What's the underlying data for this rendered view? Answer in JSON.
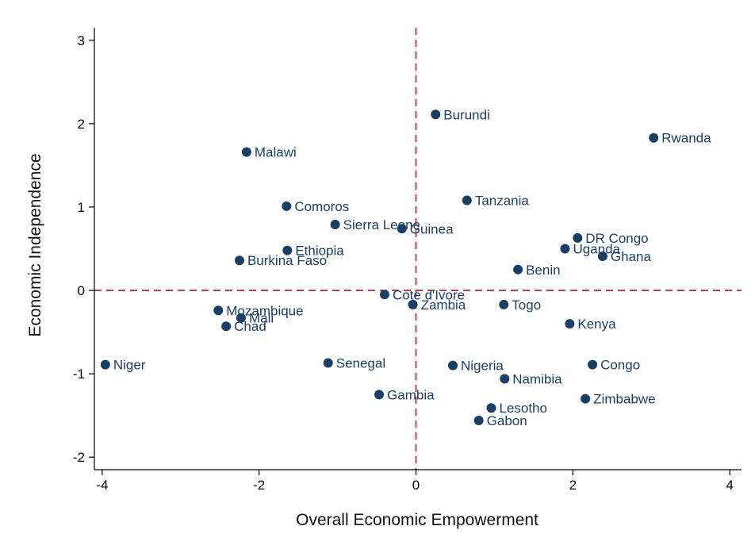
{
  "chart_data": {
    "type": "scatter",
    "title": "",
    "xlabel": "Overall Economic Empowerment",
    "ylabel": "Economic Independence",
    "xlim": [
      -4.1,
      4.15
    ],
    "ylim": [
      -2.15,
      3.15
    ],
    "xticks": [
      -4,
      -2,
      0,
      2,
      4
    ],
    "yticks": [
      -2,
      -1,
      0,
      1,
      2,
      3
    ],
    "xtick_labels": [
      "-4",
      "-2",
      "0",
      "2",
      "4"
    ],
    "ytick_labels": [
      "-2",
      "-1",
      "0",
      "1",
      "2",
      "3"
    ],
    "grid": false,
    "reference_lines": {
      "x": 0,
      "y": 0
    },
    "colors": {
      "point": "#1a3f66",
      "reference": "#b0153a"
    },
    "points": [
      {
        "label": "Burundi",
        "x": 0.25,
        "y": 2.11
      },
      {
        "label": "Rwanda",
        "x": 3.03,
        "y": 1.83
      },
      {
        "label": "Malawi",
        "x": -2.16,
        "y": 1.66
      },
      {
        "label": "Tanzania",
        "x": 0.65,
        "y": 1.08
      },
      {
        "label": "Comoros",
        "x": -1.65,
        "y": 1.01
      },
      {
        "label": "Sierra Leone",
        "x": -1.03,
        "y": 0.79
      },
      {
        "label": "Guinea",
        "x": -0.18,
        "y": 0.74
      },
      {
        "label": "DR Congo",
        "x": 2.06,
        "y": 0.63
      },
      {
        "label": "Uganda",
        "x": 1.9,
        "y": 0.5
      },
      {
        "label": "Ethiopia",
        "x": -1.64,
        "y": 0.48
      },
      {
        "label": "Ghana",
        "x": 2.38,
        "y": 0.41
      },
      {
        "label": "Burkina Faso",
        "x": -2.25,
        "y": 0.36
      },
      {
        "label": "Benin",
        "x": 1.3,
        "y": 0.25
      },
      {
        "label": "Cote d'Ivore",
        "x": -0.4,
        "y": -0.05
      },
      {
        "label": "Zambia",
        "x": -0.04,
        "y": -0.17
      },
      {
        "label": "Togo",
        "x": 1.12,
        "y": -0.17
      },
      {
        "label": "Mozambique",
        "x": -2.52,
        "y": -0.24
      },
      {
        "label": "Mali",
        "x": -2.23,
        "y": -0.33
      },
      {
        "label": "Chad",
        "x": -2.42,
        "y": -0.43
      },
      {
        "label": "Kenya",
        "x": 1.96,
        "y": -0.4
      },
      {
        "label": "Niger",
        "x": -3.96,
        "y": -0.89
      },
      {
        "label": "Senegal",
        "x": -1.12,
        "y": -0.87
      },
      {
        "label": "Nigeria",
        "x": 0.47,
        "y": -0.9
      },
      {
        "label": "Congo",
        "x": 2.25,
        "y": -0.89
      },
      {
        "label": "Namibia",
        "x": 1.13,
        "y": -1.06
      },
      {
        "label": "Gambia",
        "x": -0.47,
        "y": -1.25
      },
      {
        "label": "Zimbabwe",
        "x": 2.16,
        "y": -1.3
      },
      {
        "label": "Lesotho",
        "x": 0.96,
        "y": -1.41
      },
      {
        "label": "Gabon",
        "x": 0.8,
        "y": -1.56
      }
    ]
  }
}
